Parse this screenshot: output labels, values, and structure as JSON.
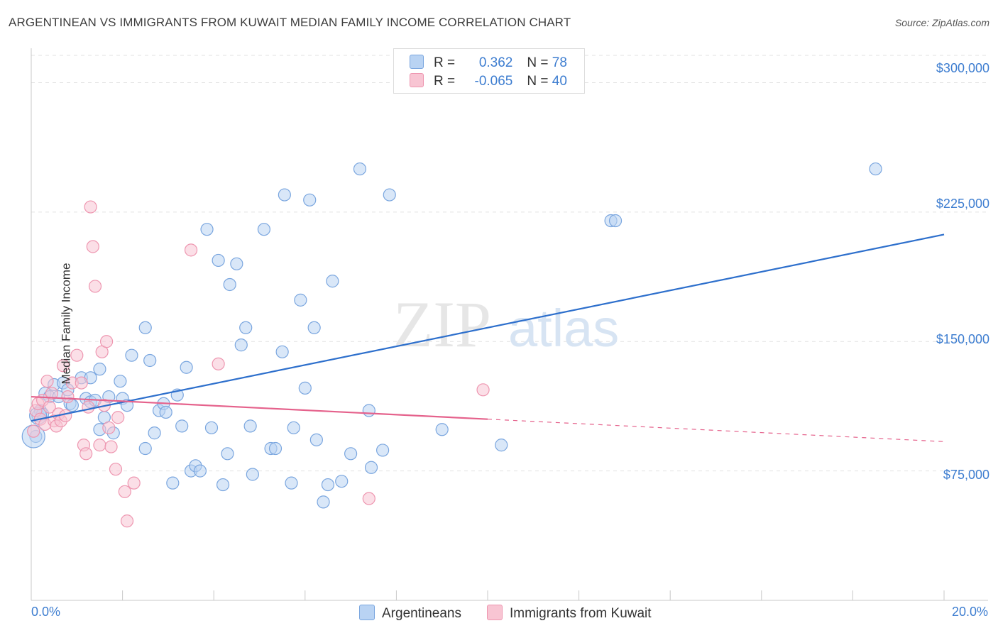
{
  "title": "ARGENTINEAN VS IMMIGRANTS FROM KUWAIT MEDIAN FAMILY INCOME CORRELATION CHART",
  "source": "Source: ZipAtlas.com",
  "colors": {
    "blue_fill": "#b9d3f3",
    "blue_stroke": "#7aa6df",
    "blue_line": "#2d6fcc",
    "pink_fill": "#f8c5d3",
    "pink_stroke": "#ee96b0",
    "pink_line": "#e5628c",
    "accent_text": "#3d7dd0"
  },
  "legend": {
    "rows": [
      {
        "r_label": "R = ",
        "r_value": "0.362",
        "n_label": "N = ",
        "n_value": "78"
      },
      {
        "r_label": "R = ",
        "r_value": "-0.065",
        "n_label": "N = ",
        "n_value": "40"
      }
    ]
  },
  "watermark": {
    "zip": "ZIP",
    "atlas": "atlas"
  },
  "chart_data": {
    "type": "scatter",
    "xlabel": "",
    "ylabel": "Median Family Income",
    "xlim": [
      0.0,
      20.0
    ],
    "ylim": [
      0,
      315000
    ],
    "x_tick_labels": [
      "0.0%",
      "20.0%"
    ],
    "y_ticks": [
      75000,
      150000,
      225000,
      300000
    ],
    "y_tick_labels": [
      "$75,000",
      "$150,000",
      "$225,000",
      "$300,000"
    ],
    "grid": true,
    "series": [
      {
        "name": "Argentineans",
        "color": "blue",
        "trend": {
          "x0": 0.0,
          "y0": 104000,
          "x1": 20.0,
          "y1": 212000
        },
        "points": [
          [
            0.1,
            95000
          ],
          [
            0.15,
            107000
          ],
          [
            0.2,
            110000
          ],
          [
            0.25,
            108000
          ],
          [
            0.3,
            120000
          ],
          [
            0.4,
            118000
          ],
          [
            0.5,
            125000
          ],
          [
            0.6,
            118000
          ],
          [
            0.7,
            126000
          ],
          [
            0.8,
            122000
          ],
          [
            0.85,
            114000
          ],
          [
            0.9,
            113000
          ],
          [
            1.1,
            129000
          ],
          [
            1.2,
            117000
          ],
          [
            1.3,
            115000
          ],
          [
            1.3,
            129000
          ],
          [
            1.4,
            116000
          ],
          [
            1.5,
            99000
          ],
          [
            1.5,
            134000
          ],
          [
            1.6,
            106000
          ],
          [
            1.7,
            118000
          ],
          [
            1.8,
            97000
          ],
          [
            1.95,
            127000
          ],
          [
            2.0,
            117000
          ],
          [
            2.1,
            113000
          ],
          [
            2.2,
            142000
          ],
          [
            2.5,
            158000
          ],
          [
            2.5,
            88000
          ],
          [
            2.6,
            139000
          ],
          [
            2.7,
            97000
          ],
          [
            2.8,
            110000
          ],
          [
            2.9,
            114000
          ],
          [
            2.95,
            109000
          ],
          [
            3.1,
            68000
          ],
          [
            3.2,
            119000
          ],
          [
            3.3,
            101000
          ],
          [
            3.4,
            135000
          ],
          [
            3.5,
            75000
          ],
          [
            3.6,
            78000
          ],
          [
            3.7,
            75000
          ],
          [
            3.85,
            215000
          ],
          [
            3.95,
            100000
          ],
          [
            4.1,
            197000
          ],
          [
            4.2,
            67000
          ],
          [
            4.3,
            85000
          ],
          [
            4.35,
            183000
          ],
          [
            4.5,
            195000
          ],
          [
            4.6,
            148000
          ],
          [
            4.7,
            158000
          ],
          [
            4.8,
            101000
          ],
          [
            4.85,
            73000
          ],
          [
            5.1,
            215000
          ],
          [
            5.25,
            88000
          ],
          [
            5.35,
            88000
          ],
          [
            5.5,
            144000
          ],
          [
            5.55,
            235000
          ],
          [
            5.7,
            68000
          ],
          [
            5.75,
            100000
          ],
          [
            5.9,
            174000
          ],
          [
            6.0,
            123000
          ],
          [
            6.1,
            232000
          ],
          [
            6.2,
            158000
          ],
          [
            6.25,
            93000
          ],
          [
            6.4,
            57000
          ],
          [
            6.5,
            67000
          ],
          [
            6.6,
            185000
          ],
          [
            6.8,
            69000
          ],
          [
            7.0,
            85000
          ],
          [
            7.2,
            250000
          ],
          [
            7.4,
            110000
          ],
          [
            7.45,
            77000
          ],
          [
            7.7,
            87000
          ],
          [
            7.85,
            235000
          ],
          [
            9.0,
            99000
          ],
          [
            10.3,
            90000
          ],
          [
            12.7,
            220000
          ],
          [
            12.8,
            220000
          ],
          [
            18.5,
            250000
          ]
        ]
      },
      {
        "name": "Immigrants from Kuwait",
        "color": "pink",
        "trend": {
          "x0": 0.0,
          "y0": 118000,
          "x1": 10.0,
          "y1": 105000,
          "dash_to_x": 20.0,
          "dash_to_y": 92000
        },
        "points": [
          [
            0.05,
            98000
          ],
          [
            0.1,
            110000
          ],
          [
            0.15,
            114000
          ],
          [
            0.2,
            105000
          ],
          [
            0.25,
            116000
          ],
          [
            0.3,
            102000
          ],
          [
            0.35,
            127000
          ],
          [
            0.4,
            112000
          ],
          [
            0.45,
            120000
          ],
          [
            0.5,
            104000
          ],
          [
            0.55,
            101000
          ],
          [
            0.6,
            108000
          ],
          [
            0.65,
            104000
          ],
          [
            0.7,
            136000
          ],
          [
            0.75,
            107000
          ],
          [
            0.8,
            118000
          ],
          [
            0.9,
            126000
          ],
          [
            1.0,
            142000
          ],
          [
            1.1,
            126000
          ],
          [
            1.15,
            90000
          ],
          [
            1.2,
            85000
          ],
          [
            1.25,
            112000
          ],
          [
            1.3,
            228000
          ],
          [
            1.35,
            205000
          ],
          [
            1.4,
            182000
          ],
          [
            1.5,
            90000
          ],
          [
            1.55,
            144000
          ],
          [
            1.6,
            113000
          ],
          [
            1.65,
            150000
          ],
          [
            1.7,
            100000
          ],
          [
            1.75,
            89000
          ],
          [
            1.85,
            76000
          ],
          [
            1.9,
            106000
          ],
          [
            2.05,
            63000
          ],
          [
            2.25,
            68000
          ],
          [
            2.1,
            46000
          ],
          [
            3.5,
            203000
          ],
          [
            4.1,
            137000
          ],
          [
            7.4,
            59000
          ],
          [
            9.9,
            122000
          ]
        ]
      }
    ]
  }
}
